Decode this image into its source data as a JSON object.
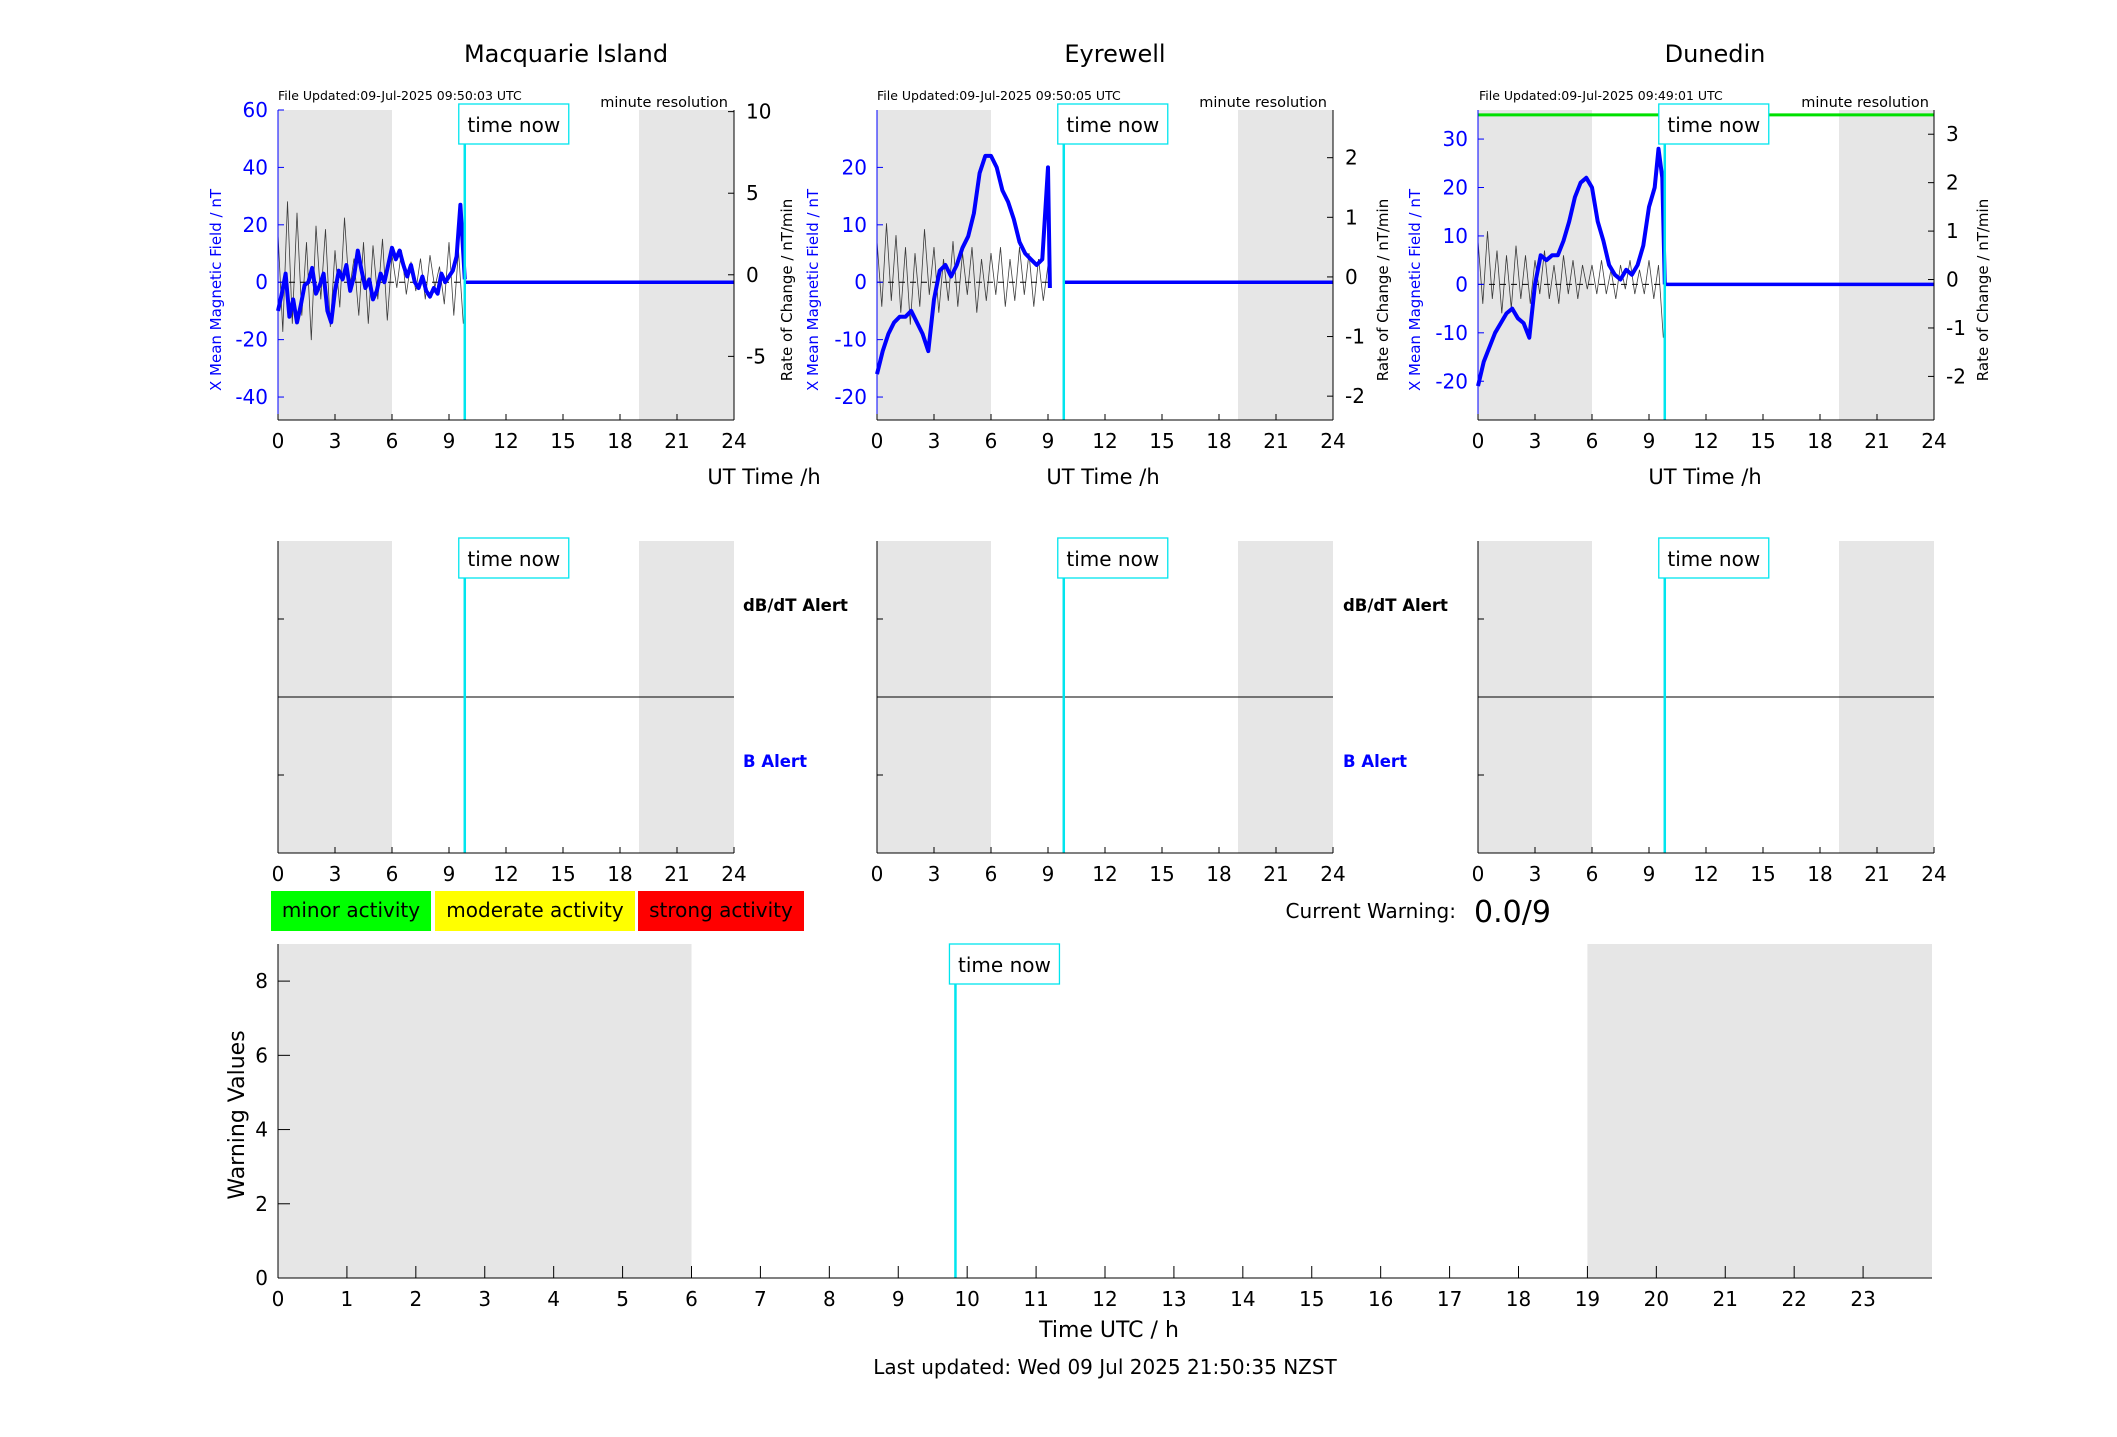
{
  "labels": {
    "time_now": "time now",
    "minute_resolution": "minute resolution",
    "ut_time": "UT Time /h",
    "left_axis": "X Mean Magnetic Field / nT",
    "right_axis": "Rate of Change / nT/min",
    "dbdt_alert": "dB/dT Alert",
    "b_alert": "B Alert",
    "current_warning_label": "Current Warning:",
    "current_warning_value": "0.0/9",
    "warning_ylabel": "Warning Values",
    "warning_xlabel": "Time UTC / h",
    "last_updated": "Last updated: Wed 09 Jul 2025 21:50:35 NZST"
  },
  "legend": [
    {
      "label": "minor activity",
      "color": "#00ff00"
    },
    {
      "label": "moderate activity",
      "color": "#ffff00"
    },
    {
      "label": "strong activity",
      "color": "#ff0000"
    }
  ],
  "colors": {
    "field": "#0000ff",
    "rate": "#000000",
    "time_now": "#00e5ee",
    "shade": "#e6e6e6",
    "threshold": "#00e000"
  },
  "chart_data": [
    {
      "type": "line",
      "title": "Macquarie Island",
      "file_updated": "File Updated:09-Jul-2025 09:50:03 UTC",
      "xlim": [
        0,
        24
      ],
      "x_ticks": [
        0,
        3,
        6,
        9,
        12,
        15,
        18,
        21,
        24
      ],
      "x_tick_labels": [
        "0",
        "3",
        "6",
        "9",
        "12",
        "15",
        "18",
        "21",
        "24"
      ],
      "ylim_left": [
        -48,
        60
      ],
      "y_ticks_left": [
        -40,
        -20,
        0,
        20,
        40,
        60
      ],
      "y_tick_labels_left": [
        "-40",
        "-20",
        "0",
        "20",
        "40",
        "60"
      ],
      "ylim_right": [
        -8.9,
        10.1
      ],
      "y_ticks_right": [
        -5,
        0,
        5,
        10
      ],
      "y_tick_labels_right": [
        "-5",
        "0",
        "5",
        "10"
      ],
      "shaded_hours": [
        [
          0,
          6
        ],
        [
          19,
          24
        ]
      ],
      "time_now": 9.83,
      "threshold_left": null,
      "field_series": {
        "name": "",
        "x": [
          0,
          0.2,
          0.4,
          0.6,
          0.8,
          1.0,
          1.2,
          1.4,
          1.6,
          1.8,
          2.0,
          2.2,
          2.4,
          2.6,
          2.8,
          3.0,
          3.2,
          3.4,
          3.6,
          3.8,
          4.0,
          4.2,
          4.4,
          4.6,
          4.8,
          5.0,
          5.2,
          5.4,
          5.6,
          5.8,
          6.0,
          6.2,
          6.4,
          6.6,
          6.8,
          7.0,
          7.2,
          7.4,
          7.6,
          7.8,
          8.0,
          8.2,
          8.4,
          8.6,
          8.8,
          9.0,
          9.2,
          9.4,
          9.6,
          9.83
        ],
        "y": [
          -10,
          -4,
          3,
          -12,
          -6,
          -14,
          -8,
          -1,
          0,
          5,
          -4,
          -1,
          3,
          -10,
          -14,
          -3,
          4,
          1,
          6,
          -3,
          2,
          11,
          4,
          -2,
          1,
          -6,
          -3,
          3,
          0,
          6,
          12,
          8,
          11,
          6,
          2,
          6,
          0,
          -2,
          2,
          -3,
          -5,
          -2,
          -4,
          3,
          0,
          2,
          4,
          9,
          27,
          1
        ]
      },
      "rate_series": {
        "name": "",
        "x": [
          0,
          0.25,
          0.5,
          0.75,
          1.0,
          1.25,
          1.5,
          1.75,
          2.0,
          2.25,
          2.5,
          2.75,
          3.0,
          3.25,
          3.5,
          3.75,
          4.0,
          4.25,
          4.5,
          4.75,
          5.0,
          5.25,
          5.5,
          5.75,
          6.0,
          6.25,
          6.5,
          6.75,
          7.0,
          7.25,
          7.5,
          7.75,
          8.0,
          8.25,
          8.5,
          8.75,
          9.0,
          9.25,
          9.5,
          9.75
        ],
        "y": [
          2.5,
          -3.5,
          4.5,
          -3.0,
          3.8,
          -2.5,
          2.0,
          -4.0,
          3.0,
          -1.5,
          2.8,
          -3.2,
          1.5,
          -2.0,
          3.5,
          -1.0,
          1.0,
          -2.5,
          2.0,
          -3.0,
          1.8,
          -1.5,
          2.2,
          -2.8,
          1.2,
          -0.8,
          1.5,
          -1.2,
          0.8,
          -1.0,
          1.0,
          -1.5,
          1.2,
          -0.8,
          0.5,
          -1.8,
          2.0,
          -2.5,
          1.5,
          -3.0
        ]
      },
      "baseline_x": [
        0,
        9.83
      ]
    },
    {
      "type": "line",
      "title": "Eyrewell",
      "file_updated": "File Updated:09-Jul-2025 09:50:05 UTC",
      "xlim": [
        0,
        24
      ],
      "x_ticks": [
        0,
        3,
        6,
        9,
        12,
        15,
        18,
        21,
        24
      ],
      "x_tick_labels": [
        "0",
        "3",
        "6",
        "9",
        "12",
        "15",
        "18",
        "21",
        "24"
      ],
      "ylim_left": [
        -24,
        30
      ],
      "y_ticks_left": [
        -20,
        -10,
        0,
        10,
        20
      ],
      "y_tick_labels_left": [
        "-20",
        "-10",
        "0",
        "10",
        "20"
      ],
      "ylim_right": [
        -2.4,
        2.8
      ],
      "y_ticks_right": [
        -2,
        -1,
        0,
        1,
        2
      ],
      "y_tick_labels_right": [
        "-2",
        "-1",
        "0",
        "1",
        "2"
      ],
      "shaded_hours": [
        [
          0,
          6
        ],
        [
          19,
          24
        ]
      ],
      "time_now": 9.83,
      "threshold_left": null,
      "field_series": {
        "name": "",
        "x": [
          0,
          0.3,
          0.6,
          0.9,
          1.2,
          1.5,
          1.8,
          2.1,
          2.4,
          2.7,
          3.0,
          3.3,
          3.6,
          3.9,
          4.2,
          4.5,
          4.8,
          5.1,
          5.4,
          5.7,
          6.0,
          6.3,
          6.6,
          6.9,
          7.2,
          7.5,
          7.8,
          8.1,
          8.4,
          8.7,
          9.0,
          9.1
        ],
        "y": [
          -16,
          -12,
          -9,
          -7,
          -6,
          -6,
          -5,
          -7,
          -9,
          -12,
          -3,
          2,
          3,
          1,
          3,
          6,
          8,
          12,
          19,
          22,
          22,
          20,
          16,
          14,
          11,
          7,
          5,
          4,
          3,
          4,
          20,
          -1
        ]
      },
      "rate_series": {
        "name": "",
        "x": [
          0,
          0.25,
          0.5,
          0.75,
          1.0,
          1.25,
          1.5,
          1.75,
          2.0,
          2.25,
          2.5,
          2.75,
          3.0,
          3.25,
          3.5,
          3.75,
          4.0,
          4.25,
          4.5,
          4.75,
          5.0,
          5.25,
          5.5,
          5.75,
          6.0,
          6.25,
          6.5,
          6.75,
          7.0,
          7.25,
          7.5,
          7.75,
          8.0,
          8.25,
          8.5,
          8.75,
          9.0
        ],
        "y": [
          0.6,
          -0.5,
          0.9,
          -0.4,
          0.7,
          -0.6,
          0.5,
          -0.8,
          0.4,
          -0.5,
          0.8,
          -0.3,
          0.5,
          -0.6,
          0.3,
          -0.4,
          0.6,
          -0.5,
          0.4,
          -0.3,
          0.5,
          -0.6,
          0.3,
          -0.4,
          0.4,
          -0.3,
          0.5,
          -0.5,
          0.3,
          -0.4,
          0.5,
          -0.3,
          0.4,
          -0.5,
          0.3,
          -0.4,
          0.2
        ]
      },
      "baseline_x": [
        0,
        9.0
      ]
    },
    {
      "type": "line",
      "title": "Dunedin",
      "file_updated": "File Updated:09-Jul-2025 09:49:01 UTC",
      "xlim": [
        0,
        24
      ],
      "x_ticks": [
        0,
        3,
        6,
        9,
        12,
        15,
        18,
        21,
        24
      ],
      "x_tick_labels": [
        "0",
        "3",
        "6",
        "9",
        "12",
        "15",
        "18",
        "21",
        "24"
      ],
      "ylim_left": [
        -28,
        36
      ],
      "y_ticks_left": [
        -20,
        -10,
        0,
        10,
        20,
        30
      ],
      "y_tick_labels_left": [
        "-20",
        "-10",
        "0",
        "10",
        "20",
        "30"
      ],
      "ylim_right": [
        -2.9,
        3.5
      ],
      "y_ticks_right": [
        -2,
        -1,
        0,
        1,
        2,
        3
      ],
      "y_tick_labels_right": [
        "-2",
        "-1",
        "0",
        "1",
        "2",
        "3"
      ],
      "shaded_hours": [
        [
          0,
          6
        ],
        [
          19,
          24
        ]
      ],
      "time_now": 9.83,
      "threshold_left": 35,
      "field_series": {
        "name": "",
        "x": [
          0,
          0.3,
          0.6,
          0.9,
          1.2,
          1.5,
          1.8,
          2.1,
          2.4,
          2.7,
          3.0,
          3.3,
          3.6,
          3.9,
          4.2,
          4.5,
          4.8,
          5.1,
          5.4,
          5.7,
          6.0,
          6.3,
          6.6,
          6.9,
          7.2,
          7.5,
          7.8,
          8.1,
          8.4,
          8.7,
          9.0,
          9.3,
          9.5,
          9.7,
          9.83
        ],
        "y": [
          -21,
          -16,
          -13,
          -10,
          -8,
          -6,
          -5,
          -7,
          -8,
          -11,
          0,
          6,
          5,
          6,
          6,
          9,
          13,
          18,
          21,
          22,
          20,
          13,
          9,
          4,
          2,
          1,
          3,
          2,
          4,
          8,
          16,
          20,
          28,
          22,
          0
        ]
      },
      "rate_series": {
        "name": "",
        "x": [
          0,
          0.25,
          0.5,
          0.75,
          1.0,
          1.25,
          1.5,
          1.75,
          2.0,
          2.25,
          2.5,
          2.75,
          3.0,
          3.25,
          3.5,
          3.75,
          4.0,
          4.25,
          4.5,
          4.75,
          5.0,
          5.25,
          5.5,
          5.75,
          6.0,
          6.25,
          6.5,
          6.75,
          7.0,
          7.25,
          7.5,
          7.75,
          8.0,
          8.25,
          8.5,
          8.75,
          9.0,
          9.25,
          9.5,
          9.75
        ],
        "y": [
          0.8,
          -0.5,
          1.0,
          -0.4,
          0.6,
          -0.7,
          0.5,
          -0.6,
          0.7,
          -0.4,
          0.5,
          -0.5,
          0.4,
          -0.3,
          0.6,
          -0.4,
          0.3,
          -0.5,
          0.5,
          -0.3,
          0.4,
          -0.4,
          0.3,
          -0.2,
          0.3,
          -0.3,
          0.4,
          -0.3,
          0.2,
          -0.4,
          0.3,
          -0.2,
          0.4,
          -0.3,
          0.2,
          -0.3,
          0.4,
          -0.4,
          0.3,
          -1.2
        ]
      },
      "baseline_x": [
        0,
        9.83
      ]
    },
    {
      "type": "line",
      "title": "",
      "xlabel": "Time UTC / h",
      "ylabel": "Warning Values",
      "xlim": [
        0,
        24
      ],
      "x_ticks": [
        0,
        1,
        2,
        3,
        4,
        5,
        6,
        7,
        8,
        9,
        10,
        11,
        12,
        13,
        14,
        15,
        16,
        17,
        18,
        19,
        20,
        21,
        22,
        23
      ],
      "x_tick_labels": [
        "0",
        "1",
        "2",
        "3",
        "4",
        "5",
        "6",
        "7",
        "8",
        "9",
        "10",
        "11",
        "12",
        "13",
        "14",
        "15",
        "16",
        "17",
        "18",
        "19",
        "20",
        "21",
        "22",
        "23"
      ],
      "ylim": [
        0,
        9
      ],
      "y_ticks": [
        0,
        2,
        4,
        6,
        8
      ],
      "y_tick_labels": [
        "0",
        "2",
        "4",
        "6",
        "8"
      ],
      "shaded_hours": [
        [
          0,
          6
        ],
        [
          19,
          24
        ]
      ],
      "time_now": 9.83
    }
  ]
}
